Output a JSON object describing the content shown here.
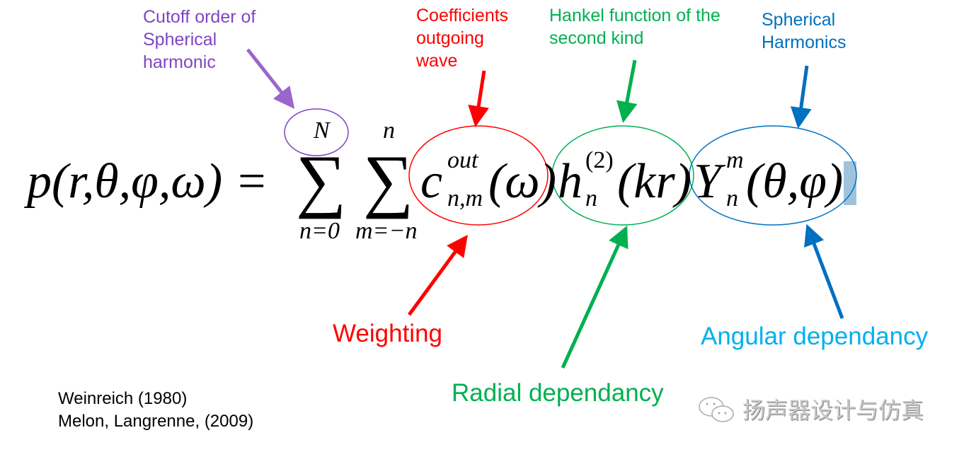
{
  "labels": {
    "cutoff": [
      "Cutoff order of",
      "Spherical",
      "harmonic"
    ],
    "coefficients": [
      "Coefficients",
      "outgoing",
      "wave"
    ],
    "hankel": [
      "Hankel function of the",
      "second kind"
    ],
    "spherical": [
      "Spherical",
      "Harmonics"
    ],
    "weighting": "Weighting",
    "radial": "Radial dependancy",
    "angular": "Angular dependancy"
  },
  "formula": {
    "lhs": "p(r,θ,φ,ω) =",
    "sum1_upper": "N",
    "sum1_lower": "n=0",
    "sum2_upper": "n",
    "sum2_lower": "m=−n",
    "sigma": "∑",
    "c": "c",
    "c_sup": "out",
    "c_sub": "n,m",
    "c_arg": "(ω)",
    "h": "h",
    "h_sup": "(2)",
    "h_sub": "n",
    "h_arg": "(kr)",
    "Y": "Y",
    "Y_sup": "m",
    "Y_sub": "n",
    "Y_arg": "(θ,φ)"
  },
  "references": [
    "Weinreich (1980)",
    "Melon, Langrenne, (2009)"
  ],
  "watermark": "扬声器设计与仿真",
  "colors": {
    "purple": "#7f45c4",
    "red": "#ff0000",
    "green": "#00b050",
    "blue": "#0070c0",
    "light_blue": "#00b0f0"
  }
}
